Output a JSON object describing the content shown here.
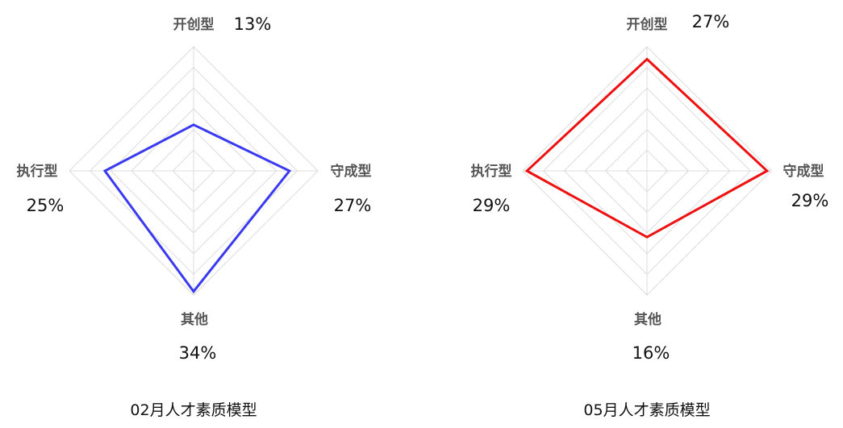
{
  "chart_data": [
    {
      "type": "radar",
      "title": "02月人才素质模型",
      "axes": [
        "开创型",
        "守成型",
        "其他",
        "执行型"
      ],
      "value_labels": [
        "13%",
        "27%",
        "34%",
        "25%"
      ],
      "values": [
        13,
        27,
        34,
        25
      ],
      "rmax": 35,
      "grid_rings": 6,
      "grid": true,
      "legend": "none",
      "color": "#3a3af2"
    },
    {
      "type": "radar",
      "title": "05月人才素质模型",
      "axes": [
        "开创型",
        "守成型",
        "其他",
        "执行型"
      ],
      "value_labels": [
        "27%",
        "29%",
        "16%",
        "29%"
      ],
      "values": [
        27,
        29,
        16,
        29
      ],
      "rmax": 30,
      "grid_rings": 6,
      "grid": true,
      "legend": "none",
      "color": "#ee1111"
    }
  ]
}
